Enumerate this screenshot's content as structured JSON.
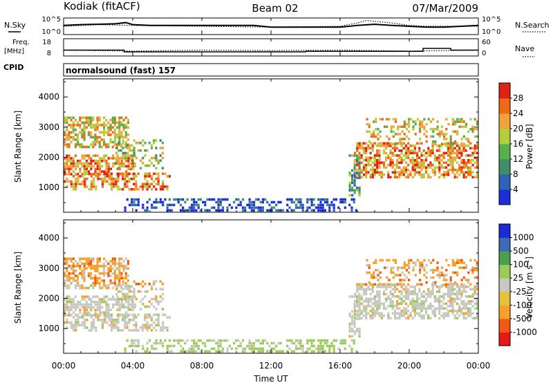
{
  "header": {
    "station": "Kodiak (fitACF)",
    "beam": "Beam 02",
    "date": "07/Mar/2009"
  },
  "cpid_label": "CPID",
  "cpid_text": "normalsound (fast) 157",
  "chart_data": [
    {
      "type": "line",
      "panel": "noise",
      "left_label": "N.Sky",
      "right_label": "N.Search",
      "y_ticks": [
        "10^5",
        "10^0"
      ],
      "series": [
        {
          "name": "N.Sky",
          "style": "solid",
          "x": [
            0,
            1,
            2,
            3,
            3.6,
            4,
            5,
            6,
            7,
            8,
            9,
            10,
            11,
            12,
            13,
            14,
            15,
            16,
            17,
            18,
            19,
            20,
            21,
            22,
            23,
            24
          ],
          "y": [
            0.55,
            0.6,
            0.62,
            0.65,
            0.72,
            0.6,
            0.55,
            0.55,
            0.55,
            0.55,
            0.55,
            0.55,
            0.55,
            0.45,
            0.45,
            0.45,
            0.45,
            0.45,
            0.55,
            0.62,
            0.55,
            0.5,
            0.45,
            0.45,
            0.5,
            0.55
          ]
        },
        {
          "name": "N.Search",
          "style": "dotted",
          "x": [
            0,
            2,
            4,
            8,
            12,
            16,
            17,
            17.5,
            18,
            19,
            20,
            21,
            22,
            24
          ],
          "y": [
            0.5,
            0.6,
            0.55,
            0.5,
            0.45,
            0.5,
            0.7,
            0.85,
            0.8,
            0.7,
            0.55,
            0.5,
            0.5,
            0.5
          ]
        }
      ]
    },
    {
      "type": "line",
      "panel": "frequency",
      "left_label": "Freq.",
      "left_unit": "[MHz]",
      "right_label": "Nave",
      "y_left_ticks": [
        "18",
        "8"
      ],
      "y_right_ticks": [
        "60",
        "0"
      ],
      "series": [
        {
          "name": "Freq.",
          "style": "solid",
          "x": [
            0,
            3.5,
            3.5,
            14,
            14,
            20.8,
            20.8,
            22.4,
            22.4,
            24
          ],
          "y": [
            13,
            13,
            11.5,
            11.5,
            12,
            12,
            14.5,
            14.5,
            13,
            13
          ]
        },
        {
          "name": "Nave",
          "style": "dotted",
          "x": [
            0,
            4,
            8,
            12,
            16,
            20,
            24
          ],
          "y": [
            30,
            25,
            30,
            28,
            30,
            25,
            30
          ]
        }
      ]
    },
    {
      "type": "heatmap",
      "panel": "power",
      "ylabel": "Slant Range [km]",
      "yticks": [
        "4000",
        "3000",
        "2000",
        "1000"
      ],
      "colorbar_label": "Power [dB]",
      "colorbar_ticks": [
        "28",
        "24",
        "20",
        "16",
        "12",
        "8",
        "4"
      ],
      "colors": [
        "#1a2fd8",
        "#2f63b7",
        "#3f8e6a",
        "#58b04a",
        "#b3cf3c",
        "#f2a23a",
        "#f06a14",
        "#e22016"
      ]
    },
    {
      "type": "heatmap",
      "panel": "velocity",
      "ylabel": "Slant Range [km]",
      "yticks": [
        "4000",
        "3000",
        "2000",
        "1000"
      ],
      "colorbar_label": "Velocity [m s^-1]",
      "colorbar_ticks": [
        "1000",
        "500",
        "100",
        "25",
        "-25",
        "-100",
        "-500",
        "-1000"
      ],
      "colors": [
        "#e81818",
        "#f05a12",
        "#f7a12a",
        "#e6c23a",
        "#c8c8c2",
        "#9ccb58",
        "#4aa04a",
        "#3c6ab8",
        "#1c2ad6"
      ]
    }
  ],
  "xaxis": {
    "ticks": [
      "00:00",
      "04:00",
      "08:00",
      "12:00",
      "16:00",
      "20:00",
      "00:00"
    ],
    "label": "Time UT"
  }
}
